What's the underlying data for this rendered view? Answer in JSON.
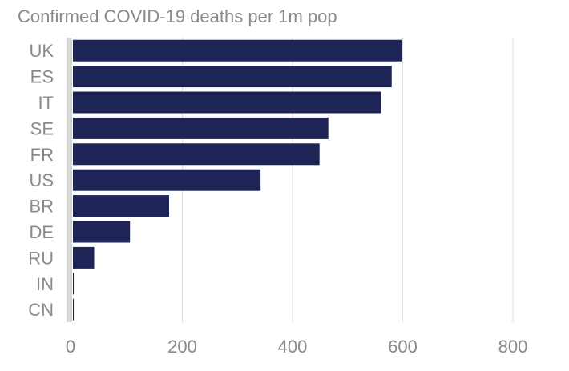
{
  "chart_data": {
    "type": "bar",
    "orientation": "horizontal",
    "title": "Confirmed COVID-19 deaths per 1m pop",
    "xlabel": "",
    "ylabel": "",
    "categories": [
      "UK",
      "ES",
      "IT",
      "SE",
      "FR",
      "US",
      "BR",
      "DE",
      "RU",
      "IN",
      "CN"
    ],
    "values": [
      598,
      580,
      561,
      465,
      449,
      342,
      176,
      105,
      40,
      3,
      3
    ],
    "xlim": [
      0,
      800
    ],
    "xticks": [
      0,
      200,
      400,
      600,
      800
    ],
    "grid": true,
    "legend": "none",
    "bar_color": "#1f2456"
  }
}
